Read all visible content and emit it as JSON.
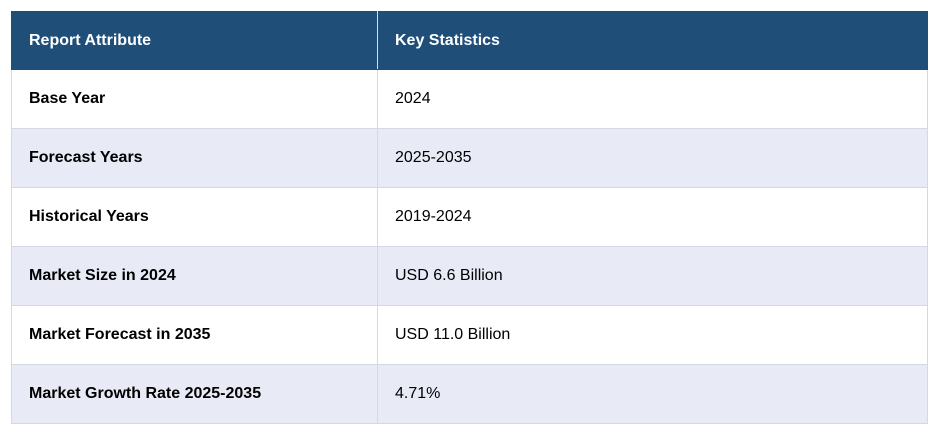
{
  "header": {
    "col1": "Report Attribute",
    "col2": "Key Statistics"
  },
  "rows": [
    {
      "attribute": "Base Year",
      "value": "2024"
    },
    {
      "attribute": "Forecast Years",
      "value": "2025-2035"
    },
    {
      "attribute": "Historical Years",
      "value": "2019-2024"
    },
    {
      "attribute": "Market Size in 2024",
      "value": "USD 6.6 Billion"
    },
    {
      "attribute": "Market Forecast in 2035",
      "value": "USD 11.0 Billion"
    },
    {
      "attribute": "Market Growth Rate 2025-2035",
      "value": "4.71%"
    }
  ],
  "colors": {
    "header_bg": "#1f4e79",
    "header_text": "#ffffff",
    "alt_row_bg": "#e8eaf6",
    "row_bg": "#ffffff",
    "border": "#d4d8e0"
  }
}
